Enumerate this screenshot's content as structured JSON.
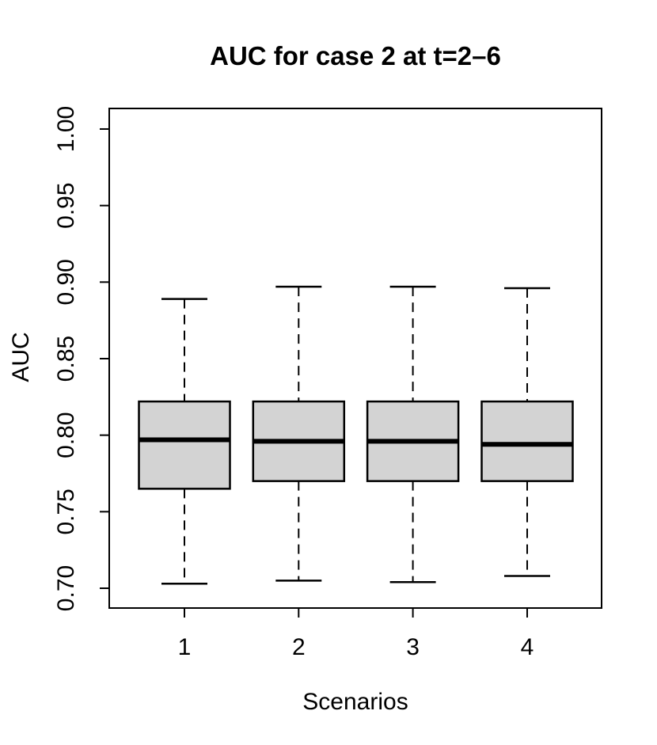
{
  "chart_data": {
    "type": "boxplot",
    "title": "AUC for case 2 at t=2–6",
    "xlabel": "Scenarios",
    "ylabel": "AUC",
    "categories": [
      "1",
      "2",
      "3",
      "4"
    ],
    "series": [
      {
        "name": "Scenario 1",
        "whisker_low": 0.703,
        "q1": 0.765,
        "median": 0.797,
        "q3": 0.822,
        "whisker_high": 0.889
      },
      {
        "name": "Scenario 2",
        "whisker_low": 0.705,
        "q1": 0.77,
        "median": 0.796,
        "q3": 0.822,
        "whisker_high": 0.897
      },
      {
        "name": "Scenario 3",
        "whisker_low": 0.704,
        "q1": 0.77,
        "median": 0.796,
        "q3": 0.822,
        "whisker_high": 0.897
      },
      {
        "name": "Scenario 4",
        "whisker_low": 0.708,
        "q1": 0.77,
        "median": 0.794,
        "q3": 0.822,
        "whisker_high": 0.896
      }
    ],
    "yticks": [
      0.7,
      0.75,
      0.8,
      0.85,
      0.9,
      0.95,
      1.0
    ],
    "ytick_labels": [
      "0.70",
      "0.75",
      "0.80",
      "0.85",
      "0.90",
      "0.95",
      "1.00"
    ],
    "ylim": [
      0.688,
      1.013
    ],
    "grid": false,
    "legend": "none",
    "box_fill": "#d3d3d3",
    "box_stroke": "#000000",
    "background": "#ffffff"
  }
}
